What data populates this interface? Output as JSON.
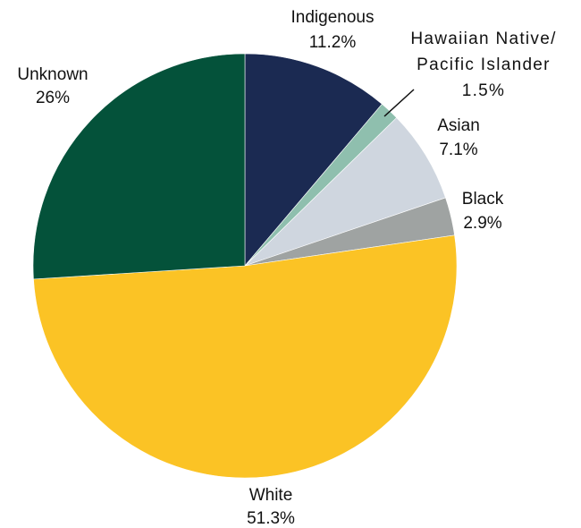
{
  "chart_data": {
    "type": "pie",
    "start_angle_deg": 0,
    "direction": "clockwise",
    "slices": [
      {
        "label": "Indigenous",
        "value": 11.2,
        "display": "11.2%",
        "color": "#1b2a52"
      },
      {
        "label": "Hawaiian Native/ Pacific Islander",
        "label_lines": [
          "Hawaiian Native/",
          "Pacific Islander"
        ],
        "value": 1.5,
        "display": "1.5%",
        "color": "#8fbfae"
      },
      {
        "label": "Asian",
        "value": 7.1,
        "display": "7.1%",
        "color": "#cfd6df"
      },
      {
        "label": "Black",
        "value": 2.9,
        "display": "2.9%",
        "color": "#9fa3a2"
      },
      {
        "label": "White",
        "value": 51.3,
        "display": "51.3%",
        "color": "#fbc325"
      },
      {
        "label": "Unknown",
        "value": 26,
        "display": "26%",
        "color": "#04523a"
      }
    ]
  }
}
